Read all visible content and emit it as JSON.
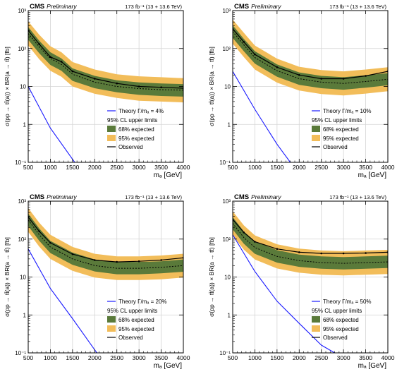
{
  "figure": {
    "experiment": "CMS",
    "status": "Preliminary",
    "lumi": "173 fb⁻¹ (13 + 13.6 TeV)",
    "ylabel": "σ(pp → tt̄(a)) × BR(a → tt̄) [fb]",
    "xlabel": "mₐ [GeV]",
    "legend_header": "95% CL upper limits",
    "legend_68": "68% expected",
    "legend_95": "95% expected",
    "legend_observed": "Observed",
    "colors": {
      "band68": "#5a7a3a",
      "band95": "#f2bd5a",
      "theory": "#1a1aff",
      "observed": "#000000"
    }
  },
  "chart_data": [
    {
      "type": "line",
      "panel": "top-left",
      "width_ratio": "4%",
      "theory_label": "Theory Γ/mₐ = 4%",
      "x": [
        500,
        750,
        1000,
        1250,
        1500,
        2000,
        2500,
        3000,
        3500,
        4000
      ],
      "xlim": [
        500,
        4000
      ],
      "ylim": [
        0.1,
        1000
      ],
      "yscale": "log",
      "grid": true,
      "legend": "bottom-right",
      "xticks": [
        "500",
        "1000",
        "1500",
        "2000",
        "2500",
        "3000",
        "3500",
        "4000"
      ],
      "yticks": [
        "10⁻¹",
        "1",
        "10",
        "10²",
        "10³"
      ],
      "observed": [
        300,
        130,
        60,
        45,
        25,
        16,
        12,
        10,
        9.5,
        9
      ],
      "expected": [
        250,
        110,
        55,
        38,
        21,
        13,
        10,
        8.8,
        8.2,
        8
      ],
      "band68_low": [
        170,
        75,
        37,
        26,
        14,
        9,
        7,
        6,
        5.6,
        5.4
      ],
      "band68_high": [
        370,
        160,
        80,
        55,
        30,
        19,
        14.5,
        12.8,
        12,
        11.5
      ],
      "band95_low": [
        120,
        52,
        26,
        18,
        10,
        6.4,
        5,
        4.2,
        4,
        3.8
      ],
      "band95_high": [
        520,
        230,
        115,
        80,
        44,
        28,
        21,
        18.5,
        17.5,
        16.5
      ],
      "theory_x": [
        500,
        1000,
        1500,
        1550
      ],
      "theory_y": [
        10,
        0.8,
        0.12,
        0.1
      ]
    },
    {
      "type": "line",
      "panel": "top-right",
      "width_ratio": "10%",
      "theory_label": "Theory Γ/mₐ = 10%",
      "x": [
        500,
        750,
        1000,
        1500,
        2000,
        2500,
        3000,
        3500,
        4000
      ],
      "xlim": [
        500,
        4000
      ],
      "ylim": [
        0.1,
        1000
      ],
      "yscale": "log",
      "grid": true,
      "legend": "bottom-right",
      "xticks": [
        "500",
        "1000",
        "1500",
        "2000",
        "2500",
        "3000",
        "3500",
        "4000"
      ],
      "yticks": [
        "10⁻¹",
        "1",
        "10",
        "10²",
        "10³"
      ],
      "observed": [
        330,
        150,
        70,
        32,
        20,
        16,
        16,
        19,
        25
      ],
      "expected": [
        280,
        125,
        58,
        26,
        16,
        13,
        12,
        13.5,
        15.5
      ],
      "band68_low": [
        190,
        85,
        40,
        18,
        11,
        9,
        8.2,
        9.3,
        10.7
      ],
      "band68_high": [
        410,
        180,
        85,
        38,
        23.5,
        19,
        17.5,
        19.8,
        22.5
      ],
      "band95_low": [
        135,
        60,
        28,
        12.6,
        7.8,
        6.3,
        5.8,
        6.5,
        7.5
      ],
      "band95_high": [
        580,
        260,
        120,
        54,
        33,
        27,
        25,
        28,
        32
      ],
      "theory_x": [
        500,
        1000,
        1500,
        1800
      ],
      "theory_y": [
        25,
        2.5,
        0.3,
        0.1
      ]
    },
    {
      "type": "line",
      "panel": "bottom-left",
      "width_ratio": "20%",
      "theory_label": "Theory Γ/mₐ = 20%",
      "x": [
        500,
        750,
        1000,
        1500,
        2000,
        2500,
        3000,
        3500,
        4000
      ],
      "xlim": [
        500,
        4000
      ],
      "ylim": [
        0.1,
        1000
      ],
      "yscale": "log",
      "grid": true,
      "legend": "bottom-right",
      "xticks": [
        "500",
        "1000",
        "1500",
        "2000",
        "2500",
        "3000",
        "3500",
        "4000"
      ],
      "yticks": [
        "10⁻¹",
        "1",
        "10",
        "10²",
        "10³"
      ],
      "observed": [
        380,
        160,
        80,
        40,
        28,
        25,
        26,
        28,
        32
      ],
      "expected": [
        320,
        130,
        62,
        30,
        20,
        17,
        17,
        18,
        20
      ],
      "band68_low": [
        220,
        90,
        43,
        21,
        14,
        11.8,
        11.8,
        12.5,
        13.8
      ],
      "band68_high": [
        470,
        190,
        90,
        44,
        29,
        25,
        25,
        26,
        29
      ],
      "band95_low": [
        155,
        63,
        30,
        14.5,
        9.7,
        8.3,
        8.3,
        8.7,
        9.7
      ],
      "band95_high": [
        660,
        270,
        130,
        62,
        41,
        35,
        35,
        37,
        41
      ],
      "theory_x": [
        500,
        1000,
        1500,
        2000,
        2050
      ],
      "theory_y": [
        55,
        5,
        0.8,
        0.12,
        0.1
      ]
    },
    {
      "type": "line",
      "panel": "bottom-right",
      "width_ratio": "50%",
      "theory_label": "Theory Γ/mₐ = 50%",
      "x": [
        500,
        750,
        1000,
        1500,
        2000,
        2500,
        3000,
        3500,
        4000
      ],
      "xlim": [
        500,
        4000
      ],
      "ylim": [
        0.1,
        1000
      ],
      "yscale": "log",
      "grid": true,
      "legend": "bottom-right",
      "xticks": [
        "500",
        "1000",
        "1500",
        "2000",
        "2500",
        "3000",
        "3500",
        "4000"
      ],
      "yticks": [
        "10⁻¹",
        "1",
        "10",
        "10²",
        "10³"
      ],
      "observed": [
        330,
        150,
        85,
        55,
        45,
        42,
        42,
        43,
        45
      ],
      "expected": [
        260,
        110,
        60,
        35,
        27,
        24,
        23,
        24,
        25
      ],
      "band68_low": [
        180,
        76,
        41,
        24,
        18.5,
        16.5,
        15.8,
        16.5,
        17.2
      ],
      "band68_high": [
        380,
        160,
        88,
        51,
        39,
        35,
        33.5,
        35,
        36.5
      ],
      "band95_low": [
        125,
        53,
        29,
        16.8,
        13,
        11.5,
        11,
        11.5,
        12
      ],
      "band95_high": [
        540,
        230,
        125,
        73,
        56,
        50,
        48,
        50,
        52
      ],
      "theory_x": [
        500,
        1000,
        1500,
        2000,
        2500,
        2800
      ],
      "theory_y": [
        130,
        14,
        2.3,
        0.6,
        0.16,
        0.1
      ]
    }
  ]
}
